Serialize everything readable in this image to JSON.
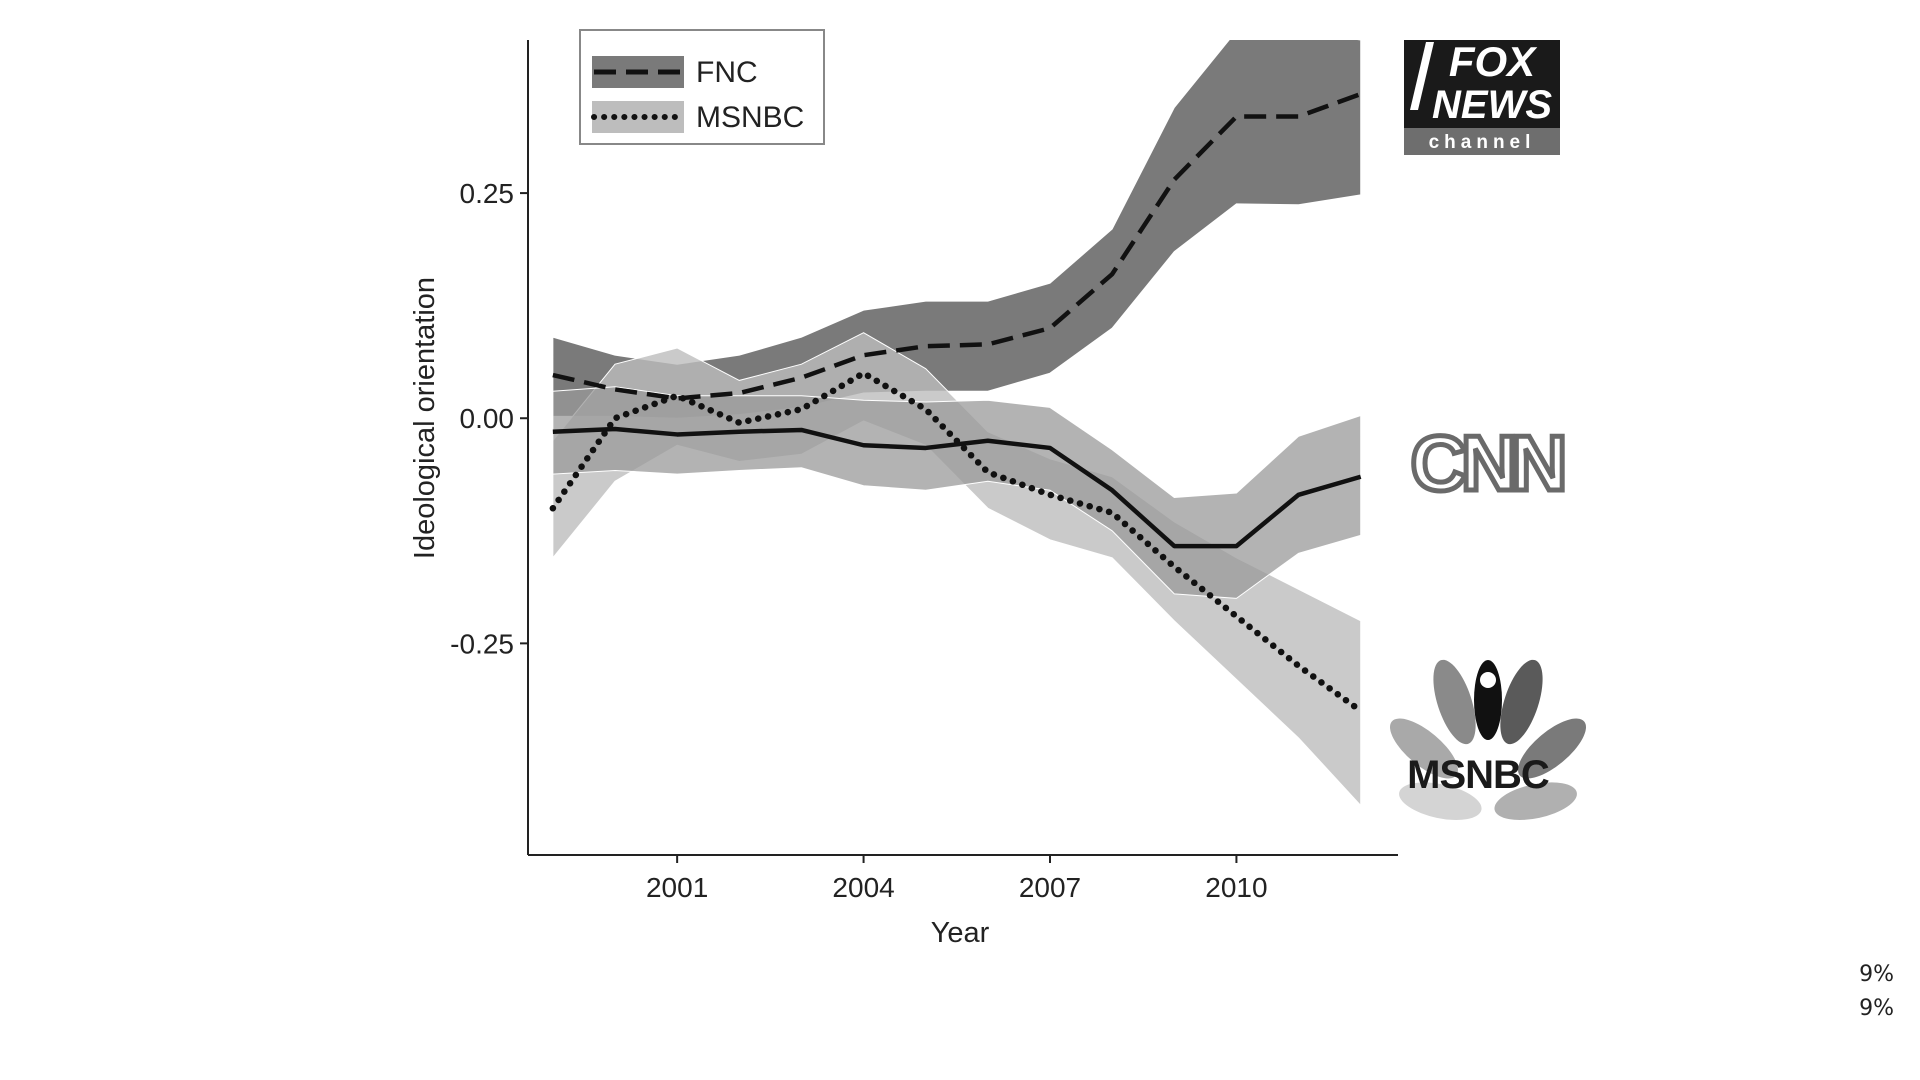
{
  "chart_data": {
    "type": "line",
    "title": "",
    "xlabel": "Year",
    "ylabel": "Ideological orientation",
    "x": [
      1999,
      2000,
      2001,
      2002,
      2003,
      2004,
      2005,
      2006,
      2007,
      2008,
      2009,
      2010,
      2011,
      2012
    ],
    "xticks": [
      2001,
      2004,
      2007,
      2010
    ],
    "yticks": [
      0.25,
      0.0,
      -0.25
    ],
    "ytick_labels": [
      "0.25",
      "0.00",
      "-0.25"
    ],
    "xlim": [
      1998.6,
      2012.6
    ],
    "ylim": [
      -0.485,
      0.42
    ],
    "grid": false,
    "legend_position": "top-left",
    "series": [
      {
        "name": "",
        "style": "solid",
        "color": "#111111",
        "band_color": "#999999",
        "values": [
          -0.015,
          -0.012,
          -0.018,
          -0.015,
          -0.013,
          -0.03,
          -0.033,
          -0.025,
          -0.033,
          -0.08,
          -0.142,
          -0.142,
          -0.085,
          -0.065
        ],
        "lower": [
          -0.062,
          -0.058,
          -0.062,
          -0.058,
          -0.055,
          -0.075,
          -0.08,
          -0.07,
          -0.08,
          -0.125,
          -0.195,
          -0.2,
          -0.15,
          -0.13
        ],
        "upper": [
          0.03,
          0.035,
          0.025,
          0.025,
          0.025,
          0.02,
          0.018,
          0.02,
          0.012,
          -0.035,
          -0.088,
          -0.083,
          -0.02,
          0.003
        ]
      },
      {
        "name": "FNC",
        "style": "dashed",
        "color": "#111111",
        "band_color": "#7a7a7a",
        "values": [
          0.048,
          0.032,
          0.022,
          0.028,
          0.045,
          0.07,
          0.08,
          0.082,
          0.1,
          0.16,
          0.265,
          0.335,
          0.335,
          0.36
        ],
        "lower": [
          0.002,
          0.002,
          0.0,
          0.004,
          0.012,
          0.028,
          0.03,
          0.03,
          0.05,
          0.1,
          0.185,
          0.238,
          0.237,
          0.248
        ],
        "upper": [
          0.09,
          0.07,
          0.06,
          0.07,
          0.09,
          0.12,
          0.13,
          0.13,
          0.15,
          0.21,
          0.345,
          0.43,
          0.43,
          0.42
        ]
      },
      {
        "name": "MSNBC",
        "style": "dotted",
        "color": "#111111",
        "band_color": "#bdbdbd",
        "values": [
          -0.1,
          0.0,
          0.025,
          -0.005,
          0.01,
          0.05,
          0.01,
          -0.06,
          -0.085,
          -0.105,
          -0.165,
          -0.22,
          -0.275,
          -0.325
        ],
        "lower": [
          -0.155,
          -0.07,
          -0.03,
          -0.048,
          -0.04,
          -0.003,
          -0.03,
          -0.1,
          -0.135,
          -0.155,
          -0.225,
          -0.29,
          -0.355,
          -0.43
        ],
        "upper": [
          -0.025,
          0.06,
          0.078,
          0.042,
          0.06,
          0.095,
          0.055,
          -0.015,
          -0.045,
          -0.065,
          -0.115,
          -0.155,
          -0.19,
          -0.225
        ]
      }
    ]
  },
  "logos": {
    "fox": {
      "line1": "FOX",
      "line2": "NEWS",
      "line3": "channel"
    },
    "cnn": {
      "text": "CNN"
    },
    "msnbc": {
      "text": "MSNBC"
    }
  },
  "overlay": {
    "line1": "9%",
    "line2": "9%"
  }
}
